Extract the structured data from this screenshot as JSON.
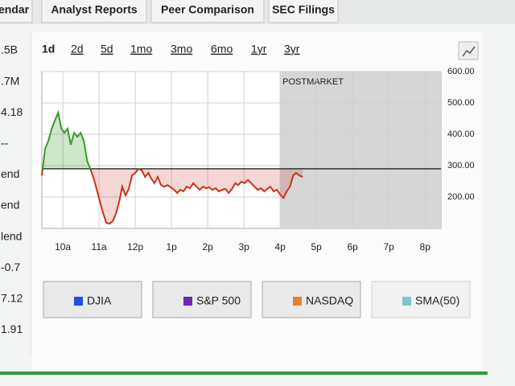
{
  "tabs": [
    "endar",
    "Analyst Reports",
    "Peer Comparison",
    "SEC Filings"
  ],
  "side_values": [
    ".5B",
    ".7M",
    "4.18",
    "--",
    "end",
    "end",
    "lend",
    "-0.7",
    "7.12",
    "1.91"
  ],
  "ranges": [
    "1d",
    "2d",
    "5d",
    "1mo",
    "3mo",
    "6mo",
    "1yr",
    "3yr"
  ],
  "active_range": 0,
  "compare": [
    {
      "name": "DJIA",
      "color": "#1e4fd8",
      "disabled": false
    },
    {
      "name": "S&P 500",
      "color": "#7a1fb8",
      "disabled": false
    },
    {
      "name": "NASDAQ",
      "color": "#e8802e",
      "disabled": false
    },
    {
      "name": "SMA(50)",
      "color": "#7cc8c8",
      "disabled": true
    }
  ],
  "chart_data": {
    "type": "line",
    "annotation": "POSTMARKET",
    "x": [
      9.42,
      9.51,
      9.6,
      9.69,
      9.78,
      9.87,
      9.96,
      10.04,
      10.13,
      10.22,
      10.31,
      10.4,
      10.49,
      10.58,
      10.67,
      10.76,
      10.84,
      10.93,
      11.02,
      11.11,
      11.2,
      11.29,
      11.38,
      11.47,
      11.56,
      11.64,
      11.73,
      11.82,
      11.91,
      12.0,
      12.09,
      12.18,
      12.27,
      12.36,
      12.44,
      12.53,
      12.62,
      12.71,
      12.8,
      12.89,
      12.98,
      13.07,
      13.16,
      13.24,
      13.33,
      13.42,
      13.51,
      13.6,
      13.69,
      13.78,
      13.87,
      13.96,
      14.04,
      14.13,
      14.22,
      14.31,
      14.4,
      14.49,
      14.58,
      14.67,
      14.76,
      14.84,
      14.93,
      15.02,
      15.11,
      15.2,
      15.29,
      15.38,
      15.47,
      15.56,
      15.64,
      15.73,
      15.82,
      15.91,
      16.0,
      16.09,
      16.18,
      16.27,
      16.36,
      16.44,
      16.53,
      16.62
    ],
    "values": [
      269,
      354,
      379,
      418,
      444,
      469,
      418,
      405,
      418,
      367,
      405,
      392,
      405,
      379,
      315,
      290,
      264,
      226,
      187,
      149,
      118,
      115,
      123,
      149,
      187,
      233,
      205,
      226,
      269,
      277,
      290,
      285,
      264,
      277,
      259,
      244,
      264,
      238,
      233,
      238,
      231,
      223,
      213,
      223,
      218,
      233,
      228,
      244,
      233,
      223,
      233,
      228,
      231,
      223,
      228,
      218,
      223,
      226,
      213,
      226,
      244,
      238,
      249,
      244,
      254,
      244,
      233,
      223,
      228,
      218,
      226,
      233,
      218,
      223,
      208,
      197,
      218,
      233,
      269,
      277,
      269,
      264
    ],
    "reference": 290,
    "above_color": "#3a9a2a",
    "below_color": "#c8321e",
    "postmarket_start": 16,
    "xlim": [
      9.42,
      20.44
    ],
    "ylim": [
      100,
      600
    ],
    "xticks": [
      {
        "value": 10,
        "label": "10a"
      },
      {
        "value": 11,
        "label": "11a"
      },
      {
        "value": 12,
        "label": "12p"
      },
      {
        "value": 13,
        "label": "1p"
      },
      {
        "value": 14,
        "label": "2p"
      },
      {
        "value": 15,
        "label": "3p"
      },
      {
        "value": 16,
        "label": "4p"
      },
      {
        "value": 17,
        "label": "5p"
      },
      {
        "value": 18,
        "label": "6p"
      },
      {
        "value": 19,
        "label": "7p"
      },
      {
        "value": 20,
        "label": "8p"
      }
    ],
    "yticks": [
      {
        "value": 200,
        "label": "200.00"
      },
      {
        "value": 300,
        "label": "300.00"
      },
      {
        "value": 400,
        "label": "400.00"
      },
      {
        "value": 500,
        "label": "500.00"
      },
      {
        "value": 600,
        "label": "600.00"
      }
    ],
    "grid": true
  }
}
